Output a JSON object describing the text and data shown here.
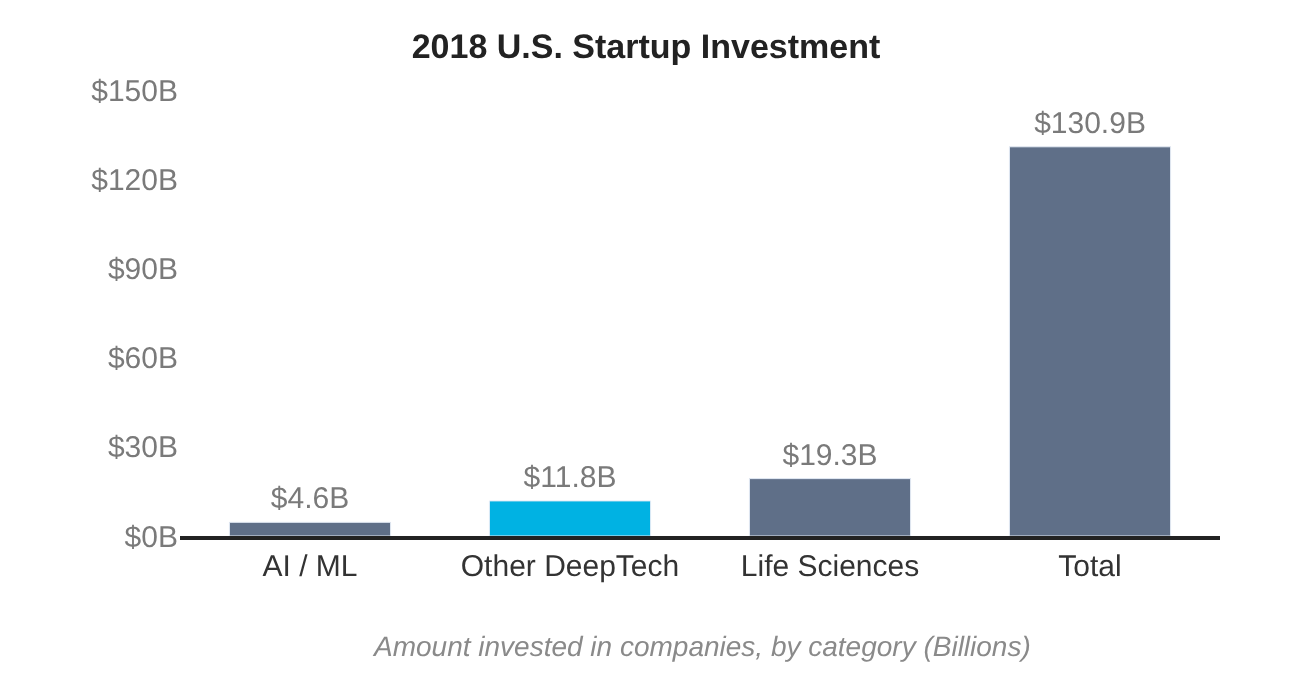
{
  "chart_data": {
    "type": "bar",
    "title": "2018 U.S. Startup Investment",
    "categories": [
      "AI / ML",
      "Other DeepTech",
      "Life Sciences",
      "Total"
    ],
    "values": [
      4.6,
      11.8,
      19.3,
      130.9
    ],
    "colors": [
      "#5f6f88",
      "#00b2e3",
      "#5f6f88",
      "#5f6f88"
    ],
    "value_labels": [
      "$4.6B",
      "$11.8B",
      "$19.3B",
      "$130.9B"
    ],
    "ylim": [
      0,
      150
    ],
    "yticks": [
      {
        "value": 0,
        "label": "$0B"
      },
      {
        "value": 30,
        "label": "$30B"
      },
      {
        "value": 60,
        "label": "$60B"
      },
      {
        "value": 90,
        "label": "$90B"
      },
      {
        "value": 120,
        "label": "$120B"
      },
      {
        "value": 150,
        "label": "$150B"
      }
    ],
    "annotations": [
      "Amount invested in companies, by category (Billions)"
    ]
  }
}
